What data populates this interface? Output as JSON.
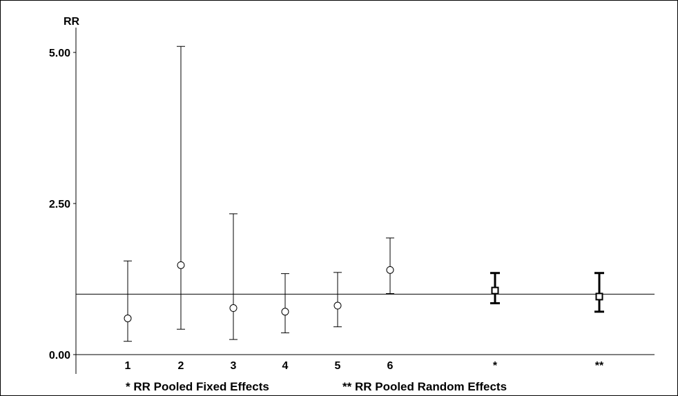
{
  "chart_data": {
    "type": "forest",
    "ylabel": "RR",
    "ylim": [
      0,
      5.0
    ],
    "yticks": [
      "0.00",
      "2.50",
      "5.00"
    ],
    "reference_line": 1.0,
    "categories": [
      "1",
      "2",
      "3",
      "4",
      "5",
      "6",
      "*",
      "**"
    ],
    "points": [
      {
        "label": "1",
        "estimate": 0.6,
        "lower": 0.22,
        "upper": 1.55,
        "pooled": false
      },
      {
        "label": "2",
        "estimate": 1.48,
        "lower": 0.42,
        "upper": 5.1,
        "pooled": false
      },
      {
        "label": "3",
        "estimate": 0.77,
        "lower": 0.25,
        "upper": 2.33,
        "pooled": false
      },
      {
        "label": "4",
        "estimate": 0.71,
        "lower": 0.36,
        "upper": 1.34,
        "pooled": false
      },
      {
        "label": "5",
        "estimate": 0.81,
        "lower": 0.46,
        "upper": 1.36,
        "pooled": false
      },
      {
        "label": "6",
        "estimate": 1.4,
        "lower": 1.01,
        "upper": 1.93,
        "pooled": false
      },
      {
        "label": "*",
        "estimate": 1.06,
        "lower": 0.85,
        "upper": 1.35,
        "pooled": true
      },
      {
        "label": "**",
        "estimate": 0.96,
        "lower": 0.71,
        "upper": 1.35,
        "pooled": true
      }
    ],
    "legend": {
      "fixed": "* RR Pooled Fixed Effects",
      "random": "** RR Pooled Random Effects"
    },
    "grid": false
  }
}
